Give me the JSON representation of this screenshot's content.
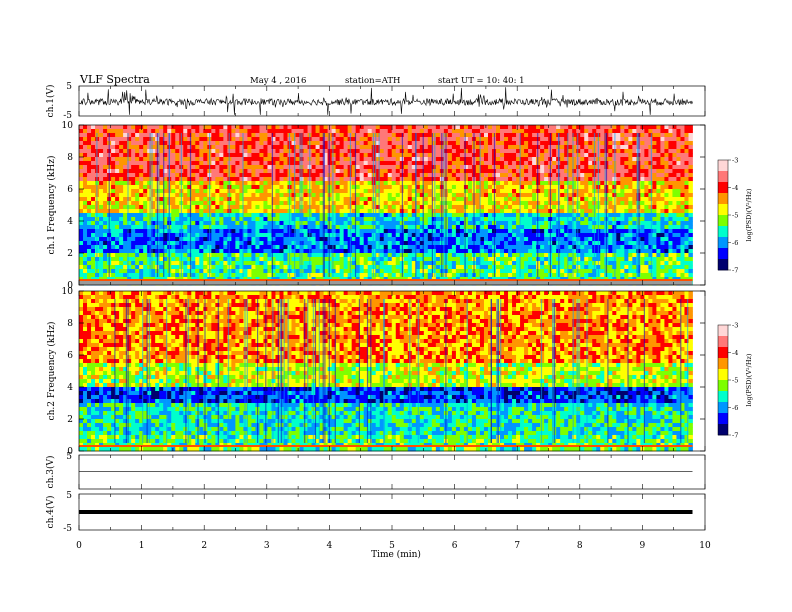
{
  "header": {
    "title": "VLF  Spectra",
    "date": "May 4  , 2016",
    "station": "station=ATH",
    "start": "start  UT  =    10: 40: 1"
  },
  "colors": {
    "spectrum_scale": [
      "#00006e",
      "#0000ff",
      "#0096ff",
      "#00ffcc",
      "#7dff00",
      "#ffff00",
      "#ff9600",
      "#ff0000",
      "#ff7878",
      "#ffd7d7"
    ],
    "waveform": "#000000"
  },
  "chart_data": [
    {
      "type": "line",
      "name": "ch1-waveform",
      "ylabel": "ch.1(V)",
      "ylim": [
        -5,
        5
      ],
      "yticks": [
        "5",
        "-5"
      ],
      "x_range_min": [
        0,
        9.8
      ],
      "description_level": "fluctuating around -0.3 V"
    },
    {
      "type": "heatmap",
      "name": "ch1-spectrogram",
      "ylabel": "ch.1 Frequency  (kHz)",
      "ylim": [
        0,
        10
      ],
      "yticks": [
        "0",
        "2",
        "4",
        "6",
        "8",
        "10"
      ],
      "x_range_min": [
        0,
        9.8
      ],
      "colorbar": {
        "label": "log(PSD)(V²/Hz)",
        "range": [
          -7,
          -3
        ],
        "ticks": [
          "-3",
          "-4",
          "-5",
          "-6",
          "-7"
        ]
      },
      "bands_khz_logpsd": [
        {
          "from": 0,
          "to": 0.5,
          "level": -5.5
        },
        {
          "from": 0.5,
          "to": 2.0,
          "level": -5.4
        },
        {
          "from": 2.0,
          "to": 3.5,
          "level": -6.1
        },
        {
          "from": 3.5,
          "to": 4.5,
          "level": -5.7
        },
        {
          "from": 4.5,
          "to": 6.5,
          "level": -4.7
        },
        {
          "from": 6.5,
          "to": 10,
          "level": -3.9
        }
      ]
    },
    {
      "type": "heatmap",
      "name": "ch2-spectrogram",
      "ylabel": "ch.2 Frequency  (kHz)",
      "ylim": [
        0,
        10
      ],
      "yticks": [
        "0",
        "2",
        "4",
        "6",
        "8",
        "10"
      ],
      "x_range_min": [
        0,
        9.8
      ],
      "colorbar": {
        "label": "log(PSD)(V²/Hz)",
        "range": [
          -7,
          -3
        ],
        "ticks": [
          "-3",
          "-4",
          "-5",
          "-6",
          "-7"
        ]
      },
      "bands_khz_logpsd": [
        {
          "from": 0,
          "to": 1.0,
          "level": -5.4
        },
        {
          "from": 1.0,
          "to": 3.0,
          "level": -5.6
        },
        {
          "from": 3.0,
          "to": 4.0,
          "level": -6.3
        },
        {
          "from": 4.0,
          "to": 5.5,
          "level": -5.0
        },
        {
          "from": 5.5,
          "to": 10,
          "level": -4.4
        }
      ]
    },
    {
      "type": "line",
      "name": "ch3-waveform",
      "ylabel": "ch.3(V)",
      "ylim": [
        -5,
        5
      ],
      "yticks": [
        "5"
      ],
      "x_range_min": [
        0,
        9.8
      ],
      "level": 0.1
    },
    {
      "type": "line",
      "name": "ch4-waveform",
      "ylabel": "ch.4(V)",
      "ylim": [
        -5,
        5
      ],
      "yticks": [
        "5",
        "-5"
      ],
      "x_range_min": [
        0,
        9.8
      ],
      "level": 0.0
    }
  ],
  "x_axis": {
    "label": "Time  (min)",
    "ticks": [
      "0",
      "1",
      "2",
      "3",
      "4",
      "5",
      "6",
      "7",
      "8",
      "9",
      "10"
    ],
    "range": [
      0,
      10
    ]
  }
}
